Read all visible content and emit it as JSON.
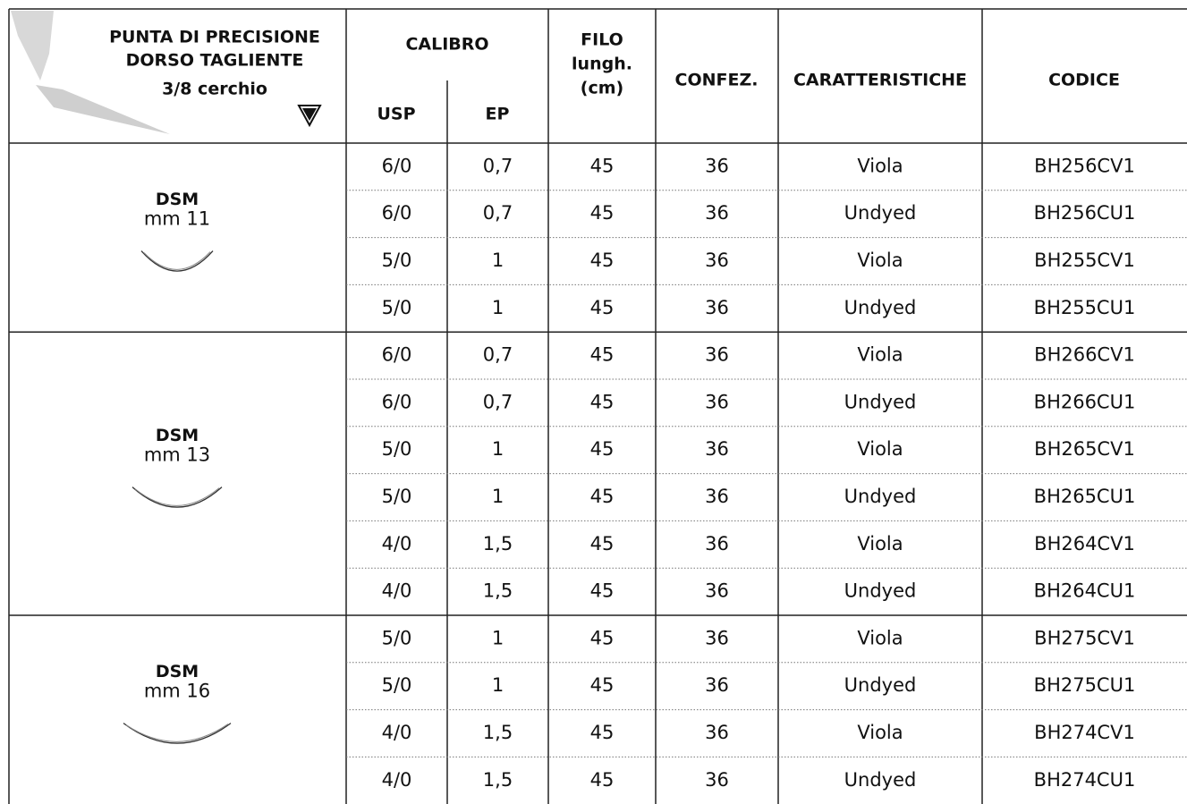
{
  "header": {
    "title": [
      "PUNTA DI PRECISIONE",
      "DORSO TAGLIENTE",
      "3/8 cerchio"
    ],
    "calibro": "CALIBRO",
    "usp": "USP",
    "ep": "EP",
    "filo": [
      "FILO",
      "lungh.",
      "(cm)"
    ],
    "confez": "CONFEZ.",
    "caratteristiche": "CARATTERISTICHE",
    "codice": "CODICE"
  },
  "groups": [
    {
      "name": "DSM",
      "size": "mm 11",
      "rows": [
        [
          "6/0",
          "0,7",
          "45",
          "36",
          "Viola",
          "BH256CV1"
        ],
        [
          "6/0",
          "0,7",
          "45",
          "36",
          "Undyed",
          "BH256CU1"
        ],
        [
          "5/0",
          "1",
          "45",
          "36",
          "Viola",
          "BH255CV1"
        ],
        [
          "5/0",
          "1",
          "45",
          "36",
          "Undyed",
          "BH255CU1"
        ]
      ]
    },
    {
      "name": "DSM",
      "size": "mm 13",
      "rows": [
        [
          "6/0",
          "0,7",
          "45",
          "36",
          "Viola",
          "BH266CV1"
        ],
        [
          "6/0",
          "0,7",
          "45",
          "36",
          "Undyed",
          "BH266CU1"
        ],
        [
          "5/0",
          "1",
          "45",
          "36",
          "Viola",
          "BH265CV1"
        ],
        [
          "5/0",
          "1",
          "45",
          "36",
          "Undyed",
          "BH265CU1"
        ],
        [
          "4/0",
          "1,5",
          "45",
          "36",
          "Viola",
          "BH264CV1"
        ],
        [
          "4/0",
          "1,5",
          "45",
          "36",
          "Undyed",
          "BH264CU1"
        ]
      ]
    },
    {
      "name": "DSM",
      "size": "mm 16",
      "rows": [
        [
          "5/0",
          "1",
          "45",
          "36",
          "Viola",
          "BH275CV1"
        ],
        [
          "5/0",
          "1",
          "45",
          "36",
          "Undyed",
          "BH275CU1"
        ],
        [
          "4/0",
          "1,5",
          "45",
          "36",
          "Viola",
          "BH274CV1"
        ],
        [
          "4/0",
          "1,5",
          "45",
          "36",
          "Undyed",
          "BH274CU1"
        ]
      ]
    }
  ]
}
